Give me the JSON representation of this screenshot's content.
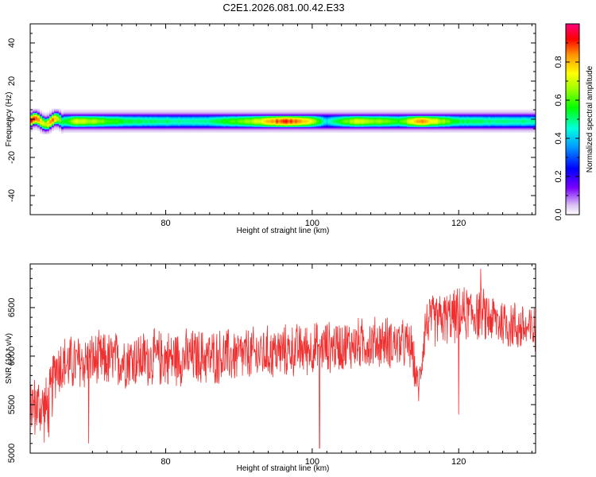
{
  "title": "C2E1.2026.081.00.42.E33",
  "chart_data": [
    {
      "type": "heatmap",
      "xlabel": "Height of straight line (km)",
      "ylabel": "Frequency (Hz)",
      "xlim": [
        61.5,
        130.5
      ],
      "ylim": [
        -50,
        50
      ],
      "x_ticks": [
        "80",
        "100",
        "120"
      ],
      "y_ticks": [
        "-40",
        "-20",
        "0",
        "20",
        "40"
      ],
      "colorbar": {
        "label": "Normalized spectral amplitude",
        "range": [
          0,
          1
        ],
        "ticks": [
          "0.0",
          "0.2",
          "0.4",
          "0.6",
          "0.8"
        ]
      },
      "band": {
        "center_frequency_hz": -1,
        "half_width_hz": 3,
        "amplitude_profile": [
          {
            "x": 62,
            "v": 0.95
          },
          {
            "x": 63.5,
            "v": 0.7
          },
          {
            "x": 64.5,
            "v": 0.9
          },
          {
            "x": 66,
            "v": 0.55
          },
          {
            "x": 68,
            "v": 0.75
          },
          {
            "x": 75,
            "v": 0.55
          },
          {
            "x": 85,
            "v": 0.5
          },
          {
            "x": 92,
            "v": 0.7
          },
          {
            "x": 96,
            "v": 0.95
          },
          {
            "x": 99,
            "v": 0.85
          },
          {
            "x": 102,
            "v": 0.45
          },
          {
            "x": 106,
            "v": 0.75
          },
          {
            "x": 112,
            "v": 0.6
          },
          {
            "x": 114.5,
            "v": 0.9
          },
          {
            "x": 120,
            "v": 0.55
          },
          {
            "x": 130,
            "v": 0.5
          }
        ]
      }
    },
    {
      "type": "line",
      "xlabel": "Height of straight line (km)",
      "ylabel": "SNR (10 * v/v)",
      "xlim": [
        61.5,
        130.5
      ],
      "ylim": [
        5000,
        6950
      ],
      "x_ticks": [
        "80",
        "100",
        "120"
      ],
      "y_ticks": [
        "5000",
        "5500",
        "6000",
        "6500"
      ],
      "color": "#f03030",
      "series_envelope": [
        {
          "x": 61.5,
          "mean": 5500,
          "amp": 350
        },
        {
          "x": 64,
          "mean": 5450,
          "amp": 400
        },
        {
          "x": 65,
          "mean": 5900,
          "amp": 350
        },
        {
          "x": 70,
          "mean": 5950,
          "amp": 330
        },
        {
          "x": 80,
          "mean": 5980,
          "amp": 330
        },
        {
          "x": 90,
          "mean": 6000,
          "amp": 320
        },
        {
          "x": 100,
          "mean": 6080,
          "amp": 300
        },
        {
          "x": 110,
          "mean": 6150,
          "amp": 300
        },
        {
          "x": 113.5,
          "mean": 6100,
          "amp": 280
        },
        {
          "x": 114.5,
          "mean": 5650,
          "amp": 200
        },
        {
          "x": 115.5,
          "mean": 6350,
          "amp": 300
        },
        {
          "x": 122,
          "mean": 6450,
          "amp": 320
        },
        {
          "x": 126,
          "mean": 6350,
          "amp": 300
        },
        {
          "x": 130.5,
          "mean": 6250,
          "amp": 300
        }
      ],
      "spikes": [
        {
          "x": 101,
          "y": 5050
        },
        {
          "x": 69.5,
          "y": 5100
        },
        {
          "x": 120,
          "y": 5400
        },
        {
          "x": 123,
          "y": 6900
        }
      ]
    }
  ]
}
